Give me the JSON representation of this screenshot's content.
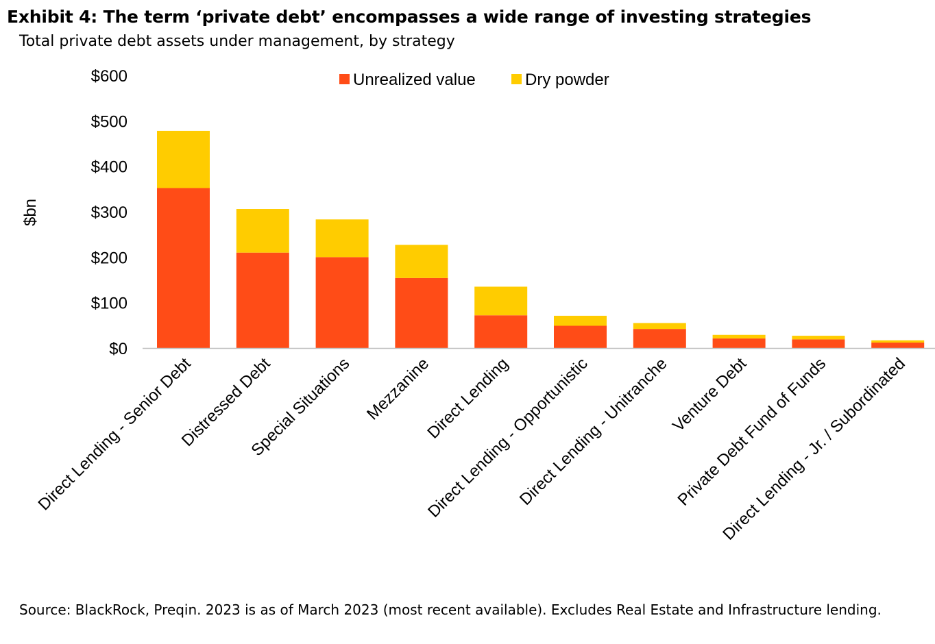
{
  "title": "Exhibit 4: The term ‘private debt’ encompasses a wide range of investing strategies",
  "subtitle": "Total private debt assets under management, by strategy",
  "source": "Source: BlackRock, Preqin. 2023 is as of March 2023 (most recent available). Excludes Real Estate and Infrastructure lending.",
  "colors": {
    "unrealized": "#FF4C17",
    "dry_powder": "#FFCC00"
  },
  "chart_data": {
    "type": "bar",
    "stacked": true,
    "title": "Exhibit 4: The term ‘private debt’ encompasses a wide range of investing strategies",
    "subtitle": "Total private debt assets under management, by strategy",
    "xlabel": "",
    "ylabel": "$bn",
    "ylim": [
      0,
      600
    ],
    "yticks": [
      0,
      100,
      200,
      300,
      400,
      500,
      600
    ],
    "ytick_labels": [
      "$0",
      "$100",
      "$200",
      "$300",
      "$400",
      "$500",
      "$600"
    ],
    "legend_position": "top-center",
    "categories": [
      "Direct Lending - Senior Debt",
      "Distressed Debt",
      "Special Situations",
      "Mezzanine",
      "Direct Lending",
      "Direct Lending - Opportunistic",
      "Direct Lending - Unitranche",
      "Venture Debt",
      "Private Debt Fund of Funds",
      "Direct Lending - Jr. / Subordinated"
    ],
    "series": [
      {
        "name": "Unrealized value",
        "values": [
          352,
          210,
          200,
          154,
          72,
          49,
          42,
          21,
          19,
          12
        ]
      },
      {
        "name": "Dry powder",
        "values": [
          126,
          96,
          83,
          73,
          63,
          22,
          13,
          8,
          8,
          5
        ]
      }
    ]
  }
}
